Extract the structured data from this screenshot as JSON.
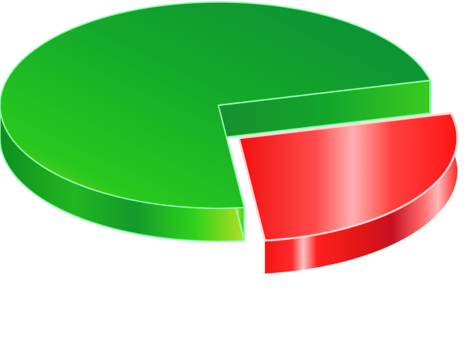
{
  "chart_data": {
    "type": "pie",
    "three_d": true,
    "exploded": "red",
    "slices": [
      {
        "value": 73,
        "color": "#1aa51a",
        "highlight": "#7de87d"
      },
      {
        "value": 27,
        "color": "#f01414",
        "highlight": "#ffb3b3"
      }
    ]
  }
}
